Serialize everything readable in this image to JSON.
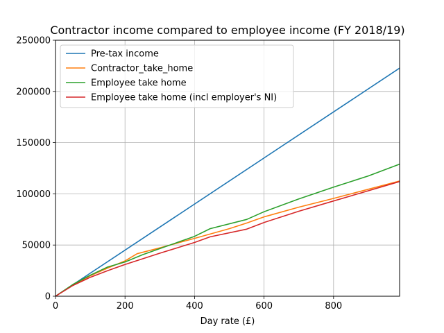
{
  "chart_data": {
    "type": "line",
    "title": "Contractor income compared to employee income (FY 2018/19)",
    "xlabel": "Day rate (£)",
    "ylabel": "",
    "xlim": [
      0,
      990
    ],
    "ylim": [
      0,
      250000
    ],
    "xticks": [
      0,
      200,
      400,
      600,
      800
    ],
    "yticks": [
      0,
      50000,
      100000,
      150000,
      200000,
      250000
    ],
    "grid": true,
    "legend_position": "top-left",
    "series": [
      {
        "name": "Pre-tax income",
        "color": "#1f77b4",
        "x": [
          0,
          990
        ],
        "y": [
          0,
          222750
        ]
      },
      {
        "name": "Contractor_take_home",
        "color": "#ff7f0e",
        "x": [
          0,
          50,
          100,
          150,
          200,
          235,
          300,
          400,
          500,
          550,
          600,
          700,
          800,
          900,
          990
        ],
        "y": [
          0,
          11200,
          20000,
          27500,
          34500,
          41500,
          47200,
          56500,
          66000,
          71500,
          77500,
          87000,
          95500,
          104500,
          112500
        ]
      },
      {
        "name": "Employee take home",
        "color": "#2ca02c",
        "x": [
          0,
          50,
          100,
          150,
          200,
          250,
          300,
          400,
          445,
          550,
          600,
          700,
          800,
          900,
          990
        ],
        "y": [
          0,
          11500,
          20500,
          28500,
          33500,
          40500,
          46500,
          58500,
          66000,
          75000,
          82500,
          95000,
          106500,
          117500,
          129000
        ]
      },
      {
        "name": "Employee take home (incl employer's NI)",
        "color": "#d62728",
        "x": [
          0,
          50,
          100,
          150,
          200,
          250,
          300,
          400,
          445,
          550,
          600,
          700,
          800,
          900,
          990
        ],
        "y": [
          0,
          10500,
          18500,
          25000,
          31000,
          36500,
          42000,
          52500,
          58000,
          65500,
          72000,
          83000,
          93000,
          103000,
          112000
        ]
      }
    ]
  }
}
